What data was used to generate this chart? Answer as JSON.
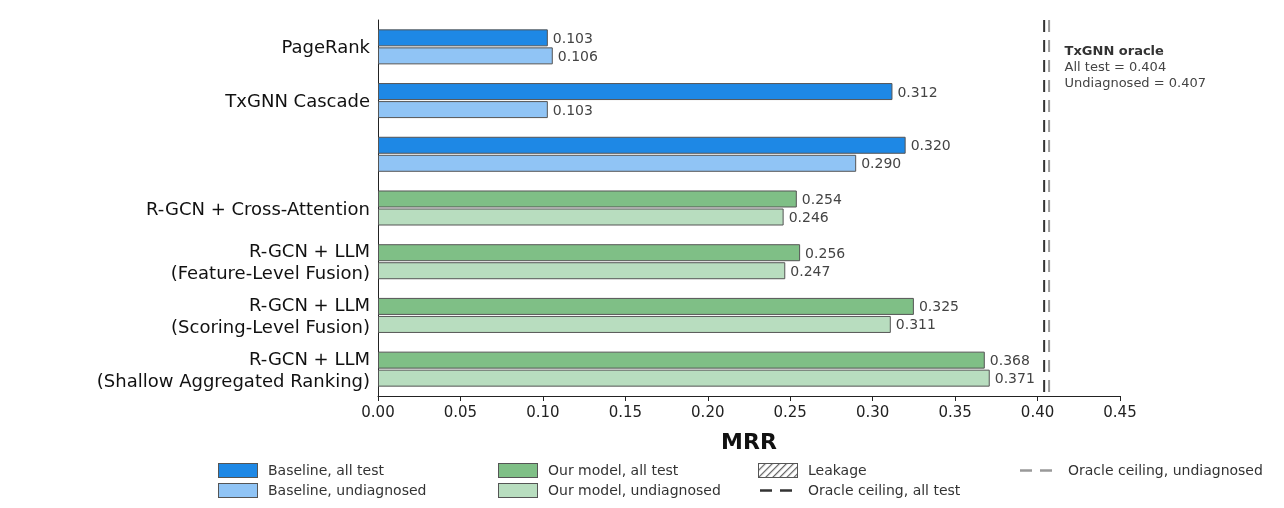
{
  "chart_data": {
    "type": "bar",
    "orientation": "horizontal",
    "xlabel": "MRR",
    "categories": [
      "PageRank",
      "TxGNN Cascade",
      null,
      "R-GCN + Cross-Attention",
      "R-GCN + LLM\n(Feature-Level Fusion)",
      "R-GCN + LLM\n(Scoring-Level Fusion)",
      "R-GCN + LLM\n(Shallow Aggregated Ranking)"
    ],
    "series": [
      {
        "name": "Baseline, all test",
        "color": "#1e88e5",
        "values": [
          0.103,
          0.312,
          0.32,
          null,
          null,
          null,
          null
        ],
        "value_labels": [
          "0.103",
          "0.312",
          "0.320",
          null,
          null,
          null,
          null
        ]
      },
      {
        "name": "Baseline, undiagnosed",
        "color": "#90c4f5",
        "values": [
          0.106,
          0.103,
          0.29,
          null,
          null,
          null,
          null
        ],
        "value_labels": [
          "0.106",
          "0.103",
          "0.290",
          null,
          null,
          null,
          null
        ]
      },
      {
        "name": "Our model, all test",
        "color": "#7fbf86",
        "values": [
          null,
          null,
          null,
          0.254,
          0.256,
          0.325,
          0.368
        ],
        "value_labels": [
          null,
          null,
          null,
          "0.254",
          "0.256",
          "0.325",
          "0.368"
        ]
      },
      {
        "name": "Our model, undiagnosed",
        "color": "#b8ddbf",
        "values": [
          null,
          null,
          null,
          0.246,
          0.247,
          0.311,
          0.371
        ],
        "value_labels": [
          null,
          null,
          null,
          "0.246",
          "0.247",
          "0.311",
          "0.371"
        ]
      }
    ],
    "xlim": [
      0,
      0.45
    ],
    "xticks": [
      {
        "value": 0,
        "label": "0.00"
      },
      {
        "value": 0.05,
        "label": "0.05"
      },
      {
        "value": 0.1,
        "label": "0.10"
      },
      {
        "value": 0.15,
        "label": "0.15"
      },
      {
        "value": 0.2,
        "label": "0.20"
      },
      {
        "value": 0.25,
        "label": "0.25"
      },
      {
        "value": 0.3,
        "label": "0.30"
      },
      {
        "value": 0.35,
        "label": "0.35"
      },
      {
        "value": 0.4,
        "label": "0.40"
      },
      {
        "value": 0.45,
        "label": "0.45"
      }
    ],
    "ref_lines": [
      {
        "axis": "x",
        "value": 0.404,
        "label": "Oracle ceiling, all test",
        "color": "#333333",
        "line_style": "dashed"
      },
      {
        "axis": "x",
        "value": 0.407,
        "label": "Oracle ceiling, undiagnosed",
        "color": "#999999",
        "line_style": "dashed"
      }
    ],
    "annotations": [
      "TxGNN oracle",
      "All test = 0.404",
      "Undiagnosed = 0.407",
      "Leakage"
    ],
    "legend": "bottom"
  }
}
